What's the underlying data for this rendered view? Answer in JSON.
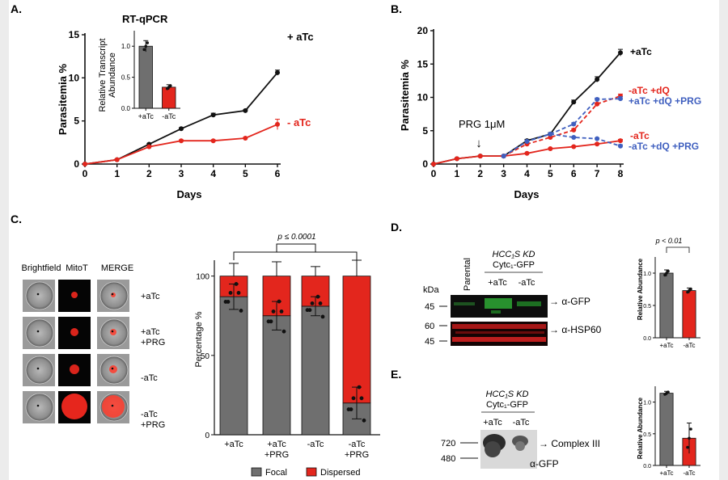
{
  "panelA": {
    "label": "A.",
    "title": "RT-qPCR",
    "xlabel": "Days",
    "ylabel": "Parasitemia %",
    "x_ticks": [
      "0",
      "1",
      "2",
      "3",
      "4",
      "5",
      "6"
    ],
    "y_ticks": [
      "0",
      "5",
      "10",
      "15"
    ],
    "series_labels": [
      "+ aTc",
      "- aTc"
    ],
    "inset": {
      "ylabel_line1": "Relative Transcript",
      "ylabel_line2": "Abundance",
      "y_ticks": [
        "0.0",
        "0.5",
        "1.0"
      ],
      "categories": [
        "+aTc",
        "-aTc"
      ]
    }
  },
  "panelB": {
    "label": "B.",
    "xlabel": "Days",
    "ylabel": "Parasitemia %",
    "x_ticks": [
      "0",
      "1",
      "2",
      "3",
      "4",
      "5",
      "6",
      "7",
      "8"
    ],
    "y_ticks": [
      "0",
      "5",
      "10",
      "15",
      "20"
    ],
    "annotation": "PRG 1μM",
    "series_labels": [
      "+aTc",
      "-aTc +dQ",
      "+aTc +dQ +PRG",
      "-aTc",
      "-aTc +dQ +PRG"
    ]
  },
  "panelC": {
    "label": "C.",
    "column_headers": [
      "Brightfield",
      "MitoT",
      "MERGE"
    ],
    "row_labels": [
      [
        "+aTc"
      ],
      [
        "+aTc",
        "+PRG"
      ],
      [
        "-aTc"
      ],
      [
        "-aTc",
        "+PRG"
      ]
    ],
    "pvalue": "p ≤ 0.0001",
    "ylabel": "Percentage %",
    "y_ticks": [
      "0",
      "50",
      "100"
    ],
    "categories": [
      [
        "+aTc"
      ],
      [
        "+aTc",
        "+PRG"
      ],
      [
        "-aTc"
      ],
      [
        "-aTc",
        "+PRG"
      ]
    ],
    "legend": [
      "Focal",
      "Dispersed"
    ]
  },
  "panelD": {
    "label": "D.",
    "lane_parental": "Parental",
    "construct_line1": "HCC₁S KD",
    "construct_line2": "Cytc₁-GFP",
    "lanes": [
      "+aTc",
      "-aTc"
    ],
    "kda": "kDa",
    "markers": [
      "45",
      "60",
      "45"
    ],
    "bands": [
      "→ α-GFP",
      "→ α-HSP60"
    ],
    "bar_pvalue": "p < 0.01",
    "bar_ylabel": "Relative Abundance",
    "bar_y_ticks": [
      "0.0",
      "0.5",
      "1.0"
    ],
    "bar_categories": [
      "+aTc",
      "-aTc"
    ]
  },
  "panelE": {
    "label": "E.",
    "construct_line1": "HCC₁S KD",
    "construct_line2": "Cytc₁-GFP",
    "lanes": [
      "+aTc",
      "-aTc"
    ],
    "markers": [
      "720",
      "480"
    ],
    "band": "→ Complex III",
    "probe": "α-GFP",
    "bar_ylabel": "Relative Abundance",
    "bar_y_ticks": [
      "0.0",
      "0.5",
      "1.0"
    ],
    "bar_categories": [
      "+aTc",
      "-aTc"
    ]
  },
  "colors": {
    "black": "#111111",
    "red": "#e3261d",
    "blue": "#3f5fbf",
    "grey": "#6f6f6f",
    "bar_red": "#e3261d"
  },
  "chart_data": [
    {
      "id": "A",
      "type": "line",
      "title": "",
      "xlabel": "Days",
      "ylabel": "Parasitemia %",
      "xlim": [
        0,
        6
      ],
      "ylim": [
        0,
        15
      ],
      "series": [
        {
          "name": "+ aTc",
          "color": "#111111",
          "x": [
            0,
            1,
            2,
            3,
            4,
            5,
            6
          ],
          "y": [
            0,
            0.5,
            2.3,
            4.1,
            5.7,
            6.2,
            10.6
          ],
          "err": [
            0,
            0.1,
            0.1,
            0.1,
            0.2,
            0.1,
            0.3
          ]
        },
        {
          "name": "- aTc",
          "color": "#e3261d",
          "x": [
            0,
            1,
            2,
            3,
            4,
            5,
            6
          ],
          "y": [
            0,
            0.5,
            2.0,
            2.7,
            2.7,
            3.0,
            4.6
          ],
          "err": [
            0,
            0.1,
            0.1,
            0.1,
            0.1,
            0.1,
            0.6
          ]
        }
      ]
    },
    {
      "id": "A-inset",
      "type": "bar",
      "title": "RT-qPCR",
      "ylabel": "Relative Transcript Abundance",
      "ylim": [
        0,
        1.25
      ],
      "categories": [
        "+aTc",
        "-aTc"
      ],
      "values": [
        1.0,
        0.34
      ],
      "err": [
        0.09,
        0.04
      ],
      "colors": [
        "#6f6f6f",
        "#e3261d"
      ]
    },
    {
      "id": "B",
      "type": "line",
      "xlabel": "Days",
      "ylabel": "Parasitemia %",
      "xlim": [
        0,
        8
      ],
      "ylim": [
        0,
        20
      ],
      "series": [
        {
          "name": "+aTc",
          "color": "#111111",
          "dash": false,
          "x": [
            0,
            1,
            2,
            3,
            4,
            5,
            6,
            7,
            8
          ],
          "y": [
            0,
            0.8,
            1.2,
            1.2,
            3.5,
            4.5,
            9.3,
            12.7,
            16.7
          ],
          "err": [
            0,
            0.1,
            0.1,
            0.1,
            0.2,
            0.2,
            0.3,
            0.4,
            0.5
          ]
        },
        {
          "name": "-aTc +dQ",
          "color": "#e3261d",
          "dash": true,
          "x": [
            3,
            4,
            5,
            6,
            7,
            8
          ],
          "y": [
            1.2,
            3.0,
            4.0,
            5.1,
            9.0,
            10.2
          ],
          "err": [
            0,
            0.1,
            0.1,
            0.2,
            0.2,
            0.3
          ]
        },
        {
          "name": "+aTc +dQ +PRG",
          "color": "#3f5fbf",
          "dash": true,
          "x": [
            3,
            4,
            5,
            6,
            7,
            8
          ],
          "y": [
            1.2,
            3.4,
            4.5,
            6.0,
            9.7,
            9.8
          ],
          "err": [
            0,
            0.1,
            0.1,
            0.2,
            0.2,
            0.3
          ]
        },
        {
          "name": "-aTc",
          "color": "#e3261d",
          "dash": false,
          "x": [
            0,
            1,
            2,
            3,
            4,
            5,
            6,
            7,
            8
          ],
          "y": [
            0,
            0.8,
            1.2,
            1.2,
            1.6,
            2.3,
            2.6,
            3.0,
            3.5
          ],
          "err": [
            0,
            0.1,
            0.1,
            0.1,
            0.1,
            0.1,
            0.1,
            0.1,
            0.2
          ]
        },
        {
          "name": "-aTc +dQ +PRG",
          "color": "#3f5fbf",
          "dash": true,
          "x": [
            3,
            4,
            5,
            6,
            7,
            8
          ],
          "y": [
            1.2,
            3.4,
            4.5,
            4.0,
            3.8,
            2.7
          ],
          "err": [
            0,
            0.1,
            0.1,
            0.1,
            0.1,
            0.2
          ]
        }
      ]
    },
    {
      "id": "C",
      "type": "bar",
      "stacked": true,
      "ylabel": "Percentage %",
      "ylim": [
        0,
        110
      ],
      "categories": [
        "+aTc",
        "+aTc +PRG",
        "-aTc",
        "-aTc +PRG"
      ],
      "series": [
        {
          "name": "Focal",
          "color": "#6f6f6f",
          "values": [
            87,
            75,
            81,
            20
          ]
        },
        {
          "name": "Dispersed",
          "color": "#e3261d",
          "values": [
            13,
            25,
            19,
            80
          ]
        }
      ],
      "err": [
        8,
        9,
        6,
        10
      ]
    },
    {
      "id": "D",
      "type": "bar",
      "ylabel": "Relative Abundance",
      "ylim": [
        0,
        1.25
      ],
      "categories": [
        "+aTc",
        "-aTc"
      ],
      "values": [
        1.0,
        0.73
      ],
      "err": [
        0.05,
        0.04
      ],
      "colors": [
        "#6f6f6f",
        "#e3261d"
      ]
    },
    {
      "id": "E",
      "type": "bar",
      "ylabel": "Relative Abundance",
      "ylim": [
        0,
        1.25
      ],
      "categories": [
        "+aTc",
        "-aTc"
      ],
      "values": [
        1.14,
        0.43
      ],
      "err": [
        0.03,
        0.24
      ],
      "colors": [
        "#6f6f6f",
        "#e3261d"
      ]
    }
  ]
}
